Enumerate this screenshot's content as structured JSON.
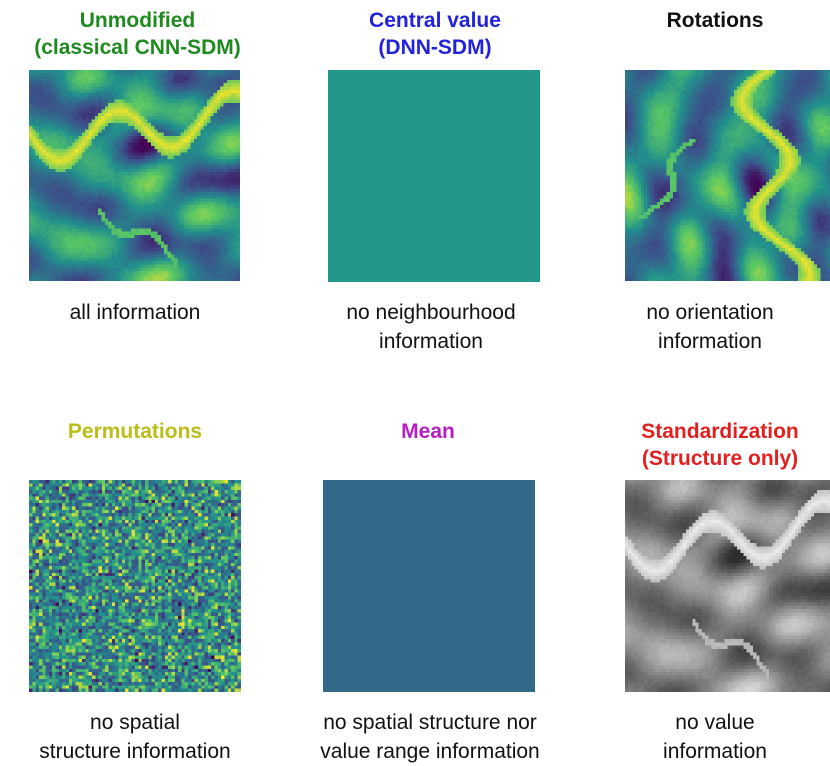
{
  "panels": [
    {
      "id": "unmodified",
      "title_lines": [
        "Unmodified",
        "(classical CNN-SDM)"
      ],
      "title_color": "#1f8a1f",
      "caption_lines": [
        "all information"
      ],
      "image": "terrain-viridis"
    },
    {
      "id": "central-value",
      "title_lines": [
        "Central value",
        "(DNN-SDM)"
      ],
      "title_color": "#2222dd",
      "caption_lines": [
        "no neighbourhood",
        "information"
      ],
      "image": "solid",
      "fill_color": "#23968a"
    },
    {
      "id": "rotations",
      "title_lines": [
        "Rotations"
      ],
      "title_color": "#111111",
      "caption_lines": [
        "no orientation",
        "information"
      ],
      "image": "terrain-viridis-rotated"
    },
    {
      "id": "permutations",
      "title_lines": [
        "Permutations"
      ],
      "title_color": "#bdbd1a",
      "caption_lines": [
        "no spatial",
        "structure information"
      ],
      "image": "noise-viridis"
    },
    {
      "id": "mean",
      "title_lines": [
        "Mean"
      ],
      "title_color": "#b81cc2",
      "caption_lines": [
        "no spatial structure nor",
        "value range information"
      ],
      "image": "solid",
      "fill_color": "#336a8a"
    },
    {
      "id": "standardization",
      "title_lines": [
        "Standardization",
        "(Structure only)"
      ],
      "title_color": "#e41f1f",
      "caption_lines": [
        "no value",
        "information"
      ],
      "image": "terrain-gray"
    }
  ]
}
